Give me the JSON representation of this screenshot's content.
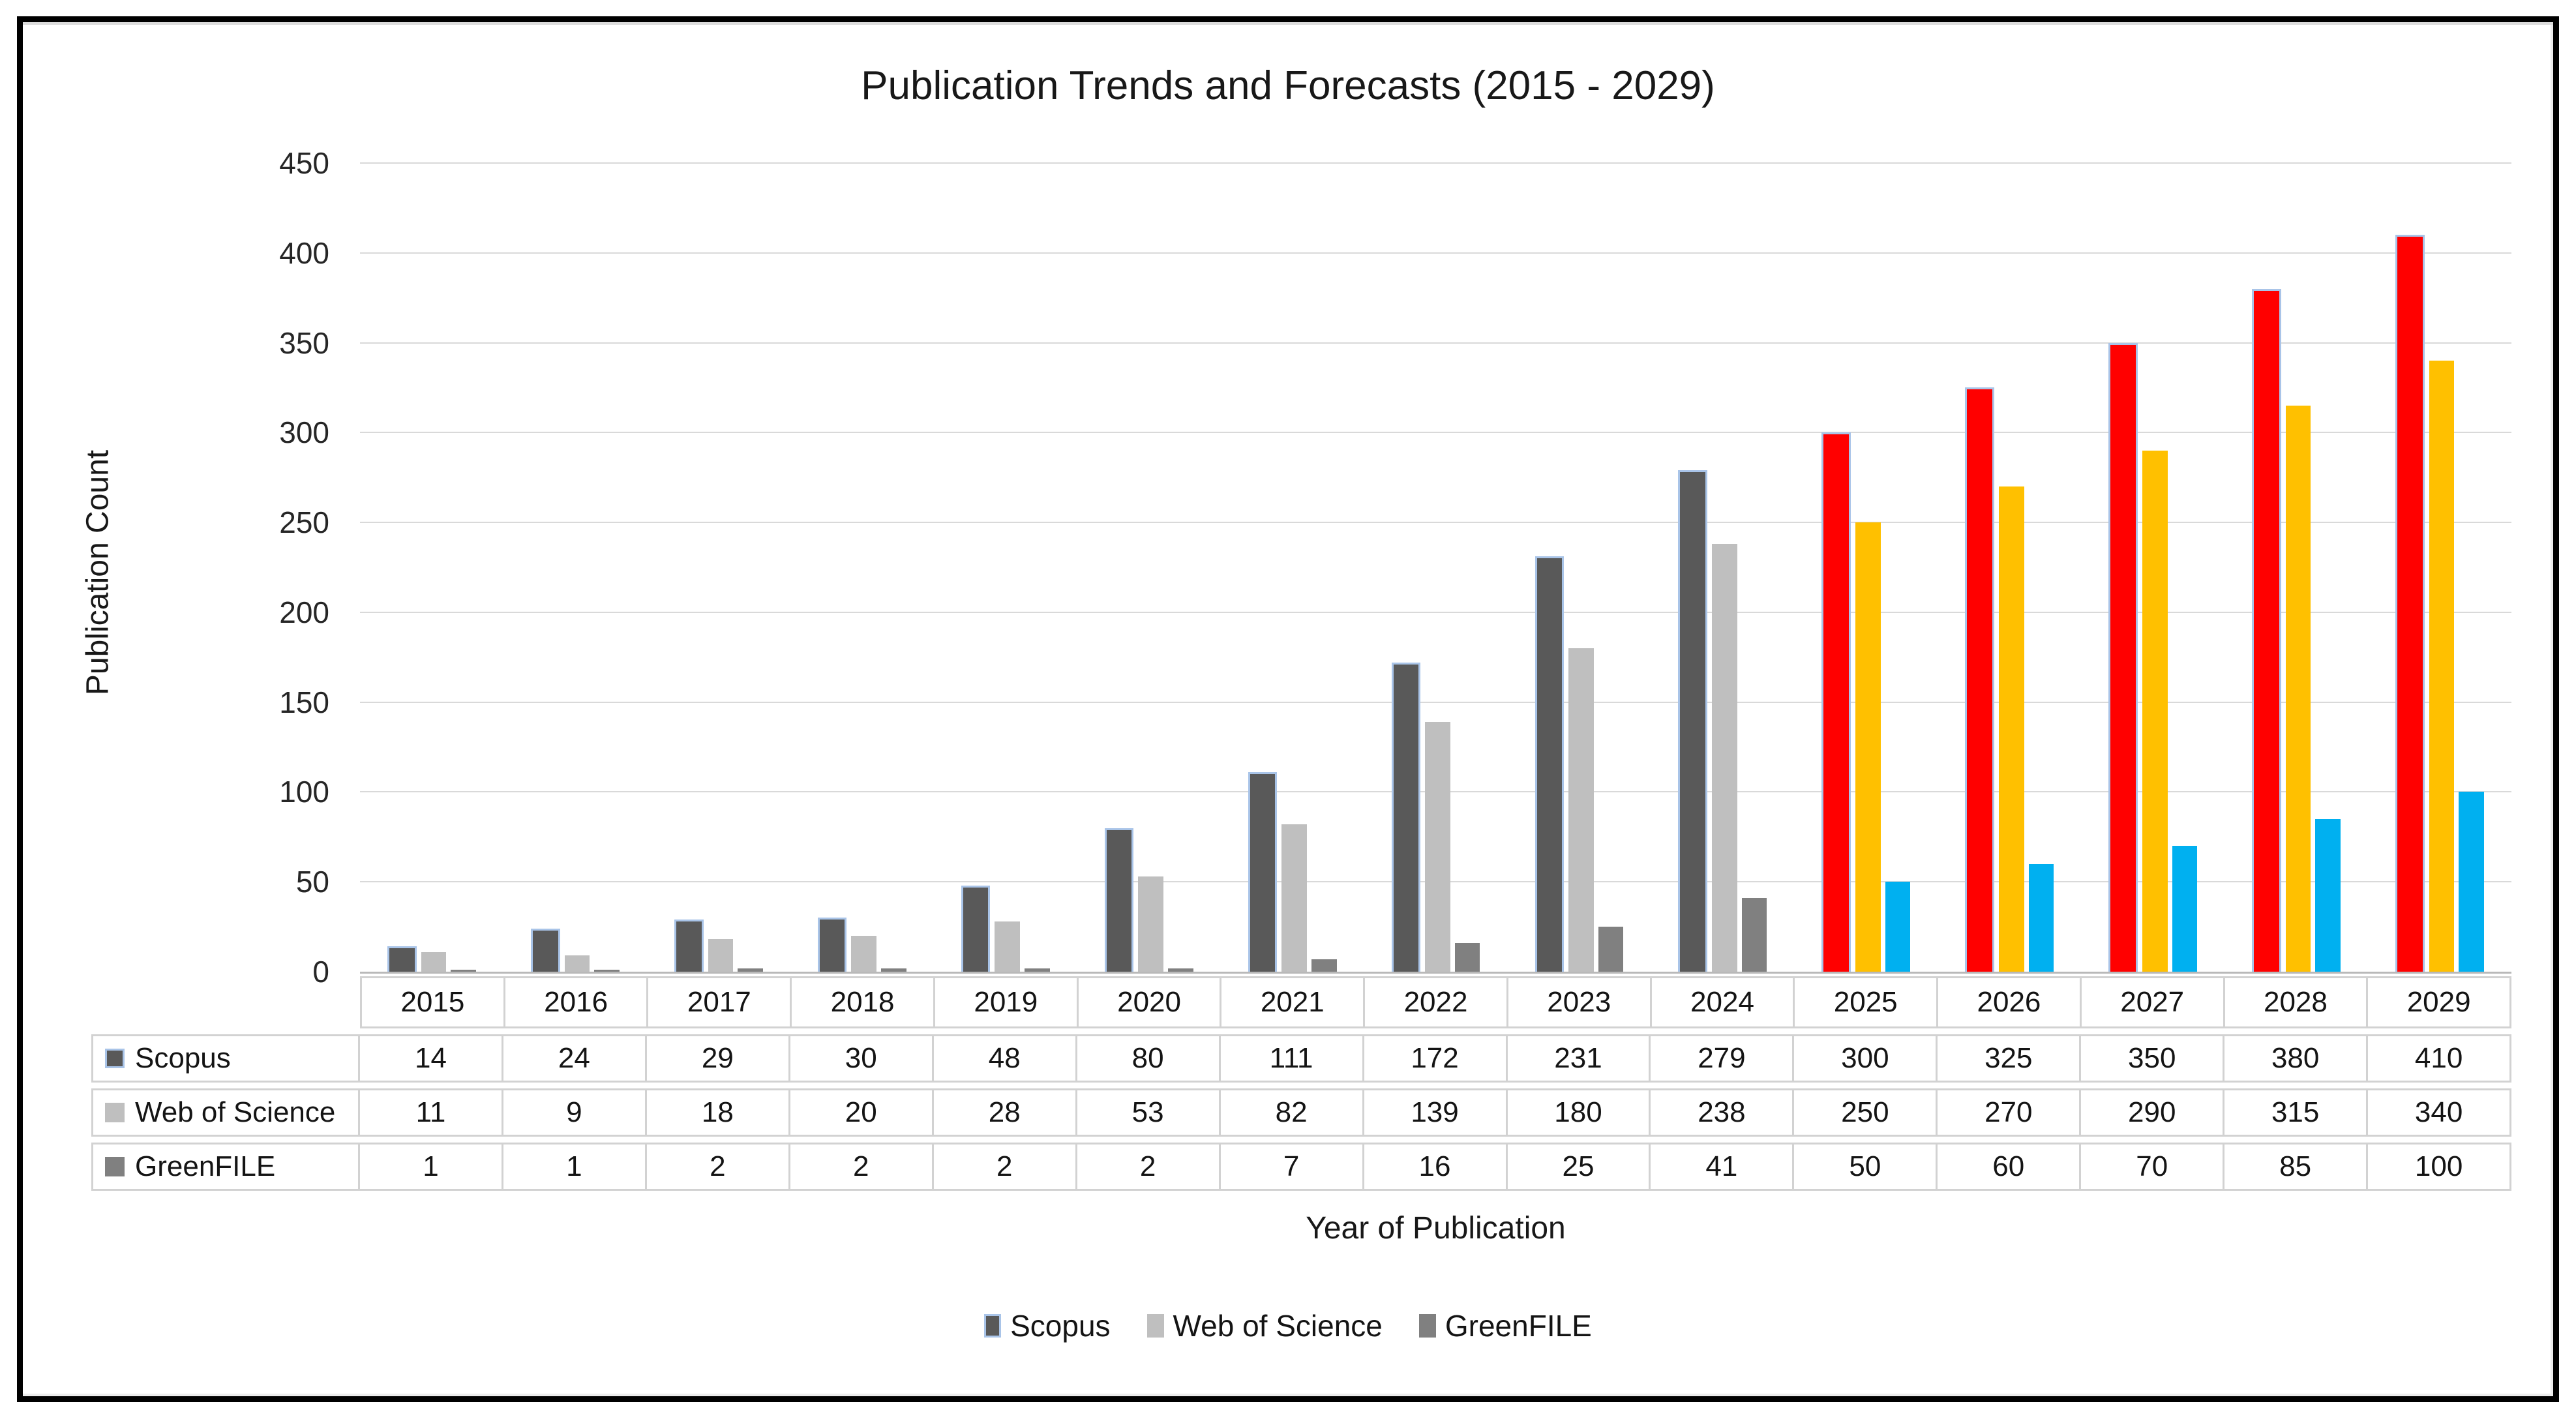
{
  "chart_data": {
    "type": "bar",
    "title": "Publication Trends and Forecasts (2015 - 2029)",
    "xlabel": "Year of Publication",
    "ylabel": "Publication Count",
    "ylim": [
      0,
      450
    ],
    "ytick_step": 50,
    "grid": true,
    "legend_position": "bottom",
    "data_table_shown": true,
    "categories": [
      "2015",
      "2016",
      "2017",
      "2018",
      "2019",
      "2020",
      "2021",
      "2022",
      "2023",
      "2024",
      "2025",
      "2026",
      "2027",
      "2028",
      "2029"
    ],
    "forecast_start_category": "2025",
    "series": [
      {
        "name": "Scopus",
        "values": [
          14,
          24,
          29,
          30,
          48,
          80,
          111,
          172,
          231,
          279,
          300,
          325,
          350,
          380,
          410
        ],
        "historical_color": "#595959",
        "forecast_color": "#FF0000",
        "bar_border_color": "#A9C4E8"
      },
      {
        "name": "Web of Science",
        "values": [
          11,
          9,
          18,
          20,
          28,
          53,
          82,
          139,
          180,
          238,
          250,
          270,
          290,
          315,
          340
        ],
        "historical_color": "#BFBFBF",
        "forecast_color": "#FFC000"
      },
      {
        "name": "GreenFILE",
        "values": [
          1,
          1,
          2,
          2,
          2,
          2,
          7,
          16,
          25,
          41,
          50,
          60,
          70,
          85,
          100
        ],
        "historical_color": "#808080",
        "forecast_color": "#00B0F0"
      }
    ]
  },
  "colors": {
    "gridline": "#d9d9d9",
    "axis_line": "#b9b9b9",
    "table_border": "#d2d2d2",
    "frame_border": "#000000"
  }
}
